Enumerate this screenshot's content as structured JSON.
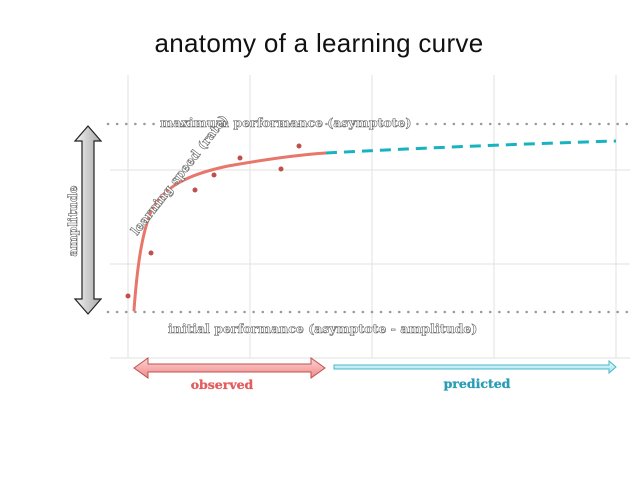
{
  "title": "anatomy of a learning curve",
  "labels": {
    "maximum": "maximum performance (asymptote)",
    "initial": "initial performance (asymptote - amplitude)",
    "rate": "learning speed (rate)",
    "amplitude": "amplitude",
    "observed": "observed",
    "predicted": "predicted"
  },
  "colors": {
    "observed_curve": "#e8766a",
    "predicted_curve": "#17b3c0",
    "points": "#c0504d",
    "observed_label": "#e35d5d",
    "predicted_label": "#2a9db5"
  }
}
